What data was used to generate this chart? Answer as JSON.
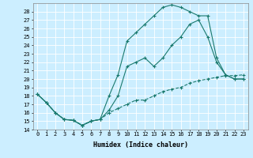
{
  "xlabel": "Humidex (Indice chaleur)",
  "bg_color": "#cceeff",
  "line_color": "#1a7a6e",
  "grid_color": "#ffffff",
  "xlim": [
    -0.5,
    23.5
  ],
  "ylim": [
    14,
    29
  ],
  "yticks": [
    14,
    15,
    16,
    17,
    18,
    19,
    20,
    21,
    22,
    23,
    24,
    25,
    26,
    27,
    28
  ],
  "xticks": [
    0,
    1,
    2,
    3,
    4,
    5,
    6,
    7,
    8,
    9,
    10,
    11,
    12,
    13,
    14,
    15,
    16,
    17,
    18,
    19,
    20,
    21,
    22,
    23
  ],
  "line_top_x": [
    0,
    1,
    2,
    3,
    4,
    5,
    6,
    7,
    8,
    9,
    10,
    11,
    12,
    13,
    14,
    15,
    16,
    17,
    18,
    19,
    20,
    21,
    22,
    23
  ],
  "line_top_y": [
    18.2,
    17.2,
    16.0,
    15.2,
    15.1,
    14.5,
    15.0,
    15.2,
    18.0,
    20.5,
    24.5,
    25.5,
    26.5,
    27.5,
    28.5,
    28.8,
    28.5,
    28.0,
    27.5,
    27.5,
    22.5,
    20.5,
    20.0,
    20.0
  ],
  "line_mid_x": [
    0,
    1,
    2,
    3,
    4,
    5,
    6,
    7,
    8,
    9,
    10,
    11,
    12,
    13,
    14,
    15,
    16,
    17,
    18,
    19,
    20,
    21,
    22,
    23
  ],
  "line_mid_y": [
    18.2,
    17.2,
    16.0,
    15.2,
    15.1,
    14.5,
    15.0,
    15.2,
    16.3,
    18.0,
    21.5,
    22.0,
    22.5,
    21.5,
    22.5,
    24.0,
    25.0,
    26.5,
    27.0,
    25.0,
    22.0,
    20.5,
    20.0,
    20.0
  ],
  "line_bot_x": [
    0,
    1,
    2,
    3,
    4,
    5,
    6,
    7,
    8,
    9,
    10,
    11,
    12,
    13,
    14,
    15,
    16,
    17,
    18,
    19,
    20,
    21,
    22,
    23
  ],
  "line_bot_y": [
    18.2,
    17.2,
    16.0,
    15.2,
    15.1,
    14.5,
    15.0,
    15.2,
    16.0,
    16.5,
    17.0,
    17.5,
    17.5,
    18.0,
    18.5,
    18.8,
    19.0,
    19.5,
    19.8,
    20.0,
    20.2,
    20.4,
    20.4,
    20.5
  ]
}
